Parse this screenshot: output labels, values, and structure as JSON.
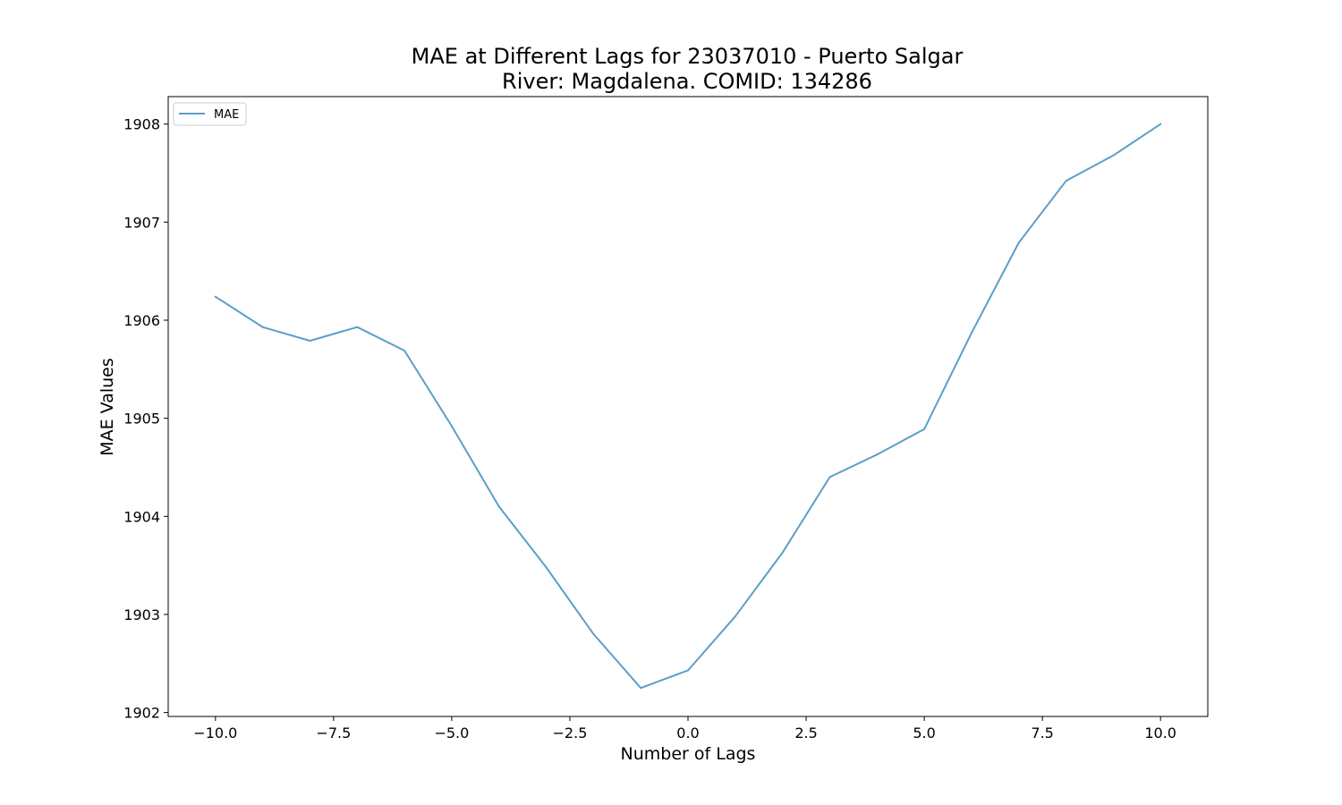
{
  "chart_data": {
    "type": "line",
    "title_line1": "MAE at Different Lags for 23037010 - Puerto Salgar",
    "title_line2": "River: Magdalena. COMID: 134286",
    "xlabel": "Number of Lags",
    "ylabel": "MAE Values",
    "xlim": [
      -11,
      11
    ],
    "ylim": [
      1901.96,
      1908.28
    ],
    "x_ticks": [
      -10.0,
      -7.5,
      -5.0,
      -2.5,
      0.0,
      2.5,
      5.0,
      7.5,
      10.0
    ],
    "x_tick_labels": [
      "−10.0",
      "−7.5",
      "−5.0",
      "−2.5",
      "0.0",
      "2.5",
      "5.0",
      "7.5",
      "10.0"
    ],
    "y_ticks": [
      1902,
      1903,
      1904,
      1905,
      1906,
      1907,
      1908
    ],
    "y_tick_labels": [
      "1902",
      "1903",
      "1904",
      "1905",
      "1906",
      "1907",
      "1908"
    ],
    "legend_position": "upper-left",
    "grid": false,
    "series": [
      {
        "name": "MAE",
        "color": "#5b9ec9",
        "x": [
          -10,
          -9,
          -8,
          -7,
          -6,
          -5,
          -4,
          -3,
          -2,
          -1,
          0,
          1,
          2,
          3,
          4,
          5,
          6,
          7,
          8,
          9,
          10
        ],
        "values": [
          1906.24,
          1905.93,
          1905.79,
          1905.93,
          1905.69,
          1904.92,
          1904.1,
          1903.48,
          1902.8,
          1902.25,
          1902.43,
          1902.98,
          1903.63,
          1904.4,
          1904.63,
          1904.89,
          1905.87,
          1906.79,
          1907.42,
          1907.68,
          1908.0
        ]
      }
    ]
  }
}
